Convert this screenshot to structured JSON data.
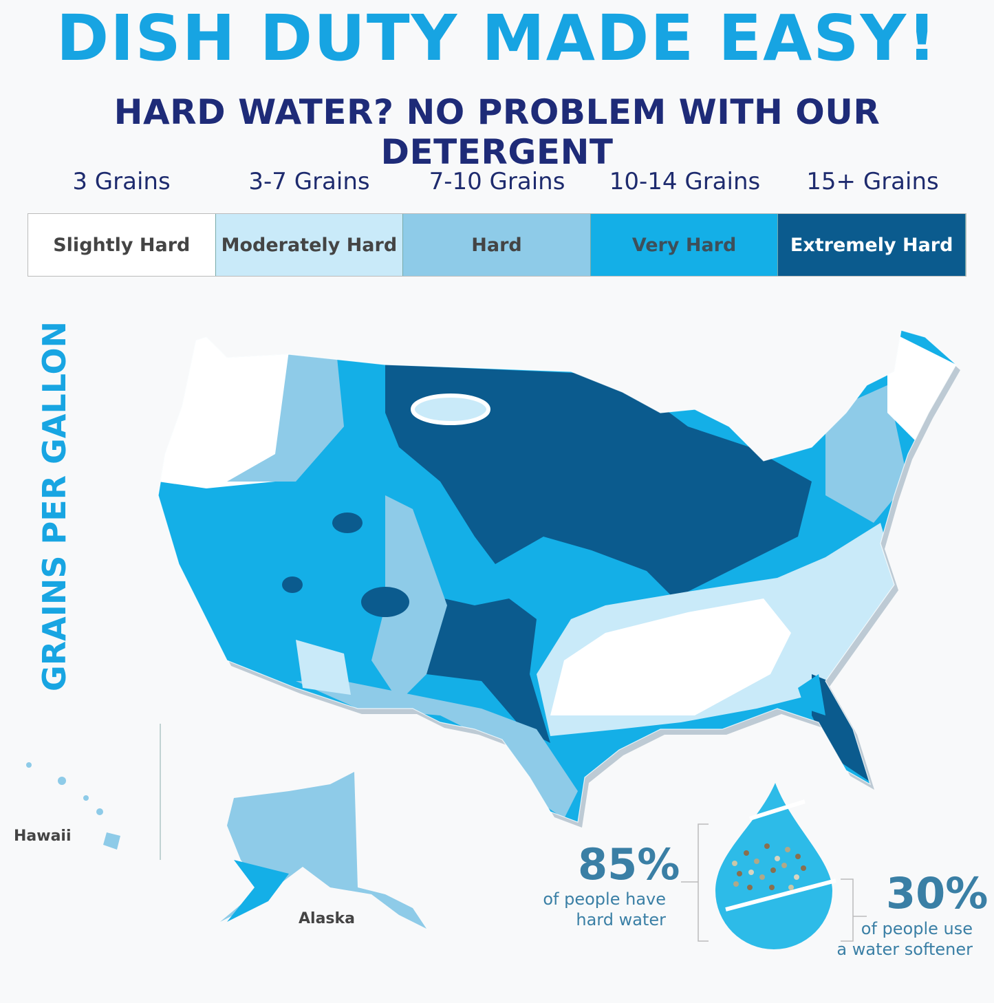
{
  "header": {
    "title": "DISH DUTY MADE EASY!",
    "subtitle": "HARD WATER? NO PROBLEM WITH OUR DETERGENT"
  },
  "legend": {
    "items": [
      {
        "grains": "3 Grains",
        "label": "Slightly Hard",
        "color": "#ffffff",
        "text_color": "#444444"
      },
      {
        "grains": "3-7 Grains",
        "label": "Moderately Hard",
        "color": "#c9eaf9",
        "text_color": "#444444"
      },
      {
        "grains": "7-10 Grains",
        "label": "Hard",
        "color": "#8ecbe8",
        "text_color": "#444444"
      },
      {
        "grains": "10-14 Grains",
        "label": "Very Hard",
        "color": "#14afe7",
        "text_color": "#3d4f5a"
      },
      {
        "grains": "15+ Grains",
        "label": "Extremely Hard",
        "color": "#0b5b8e",
        "text_color": "#ffffff"
      }
    ]
  },
  "map": {
    "axis_label": "GRAINS PER GALLON",
    "hawaii": "Hawaii",
    "alaska": "Alaska"
  },
  "stats": [
    {
      "value": "85%",
      "line1": "of people have",
      "line2": "hard water"
    },
    {
      "value": "30%",
      "line1": "of people use",
      "line2": "a water softener"
    }
  ]
}
